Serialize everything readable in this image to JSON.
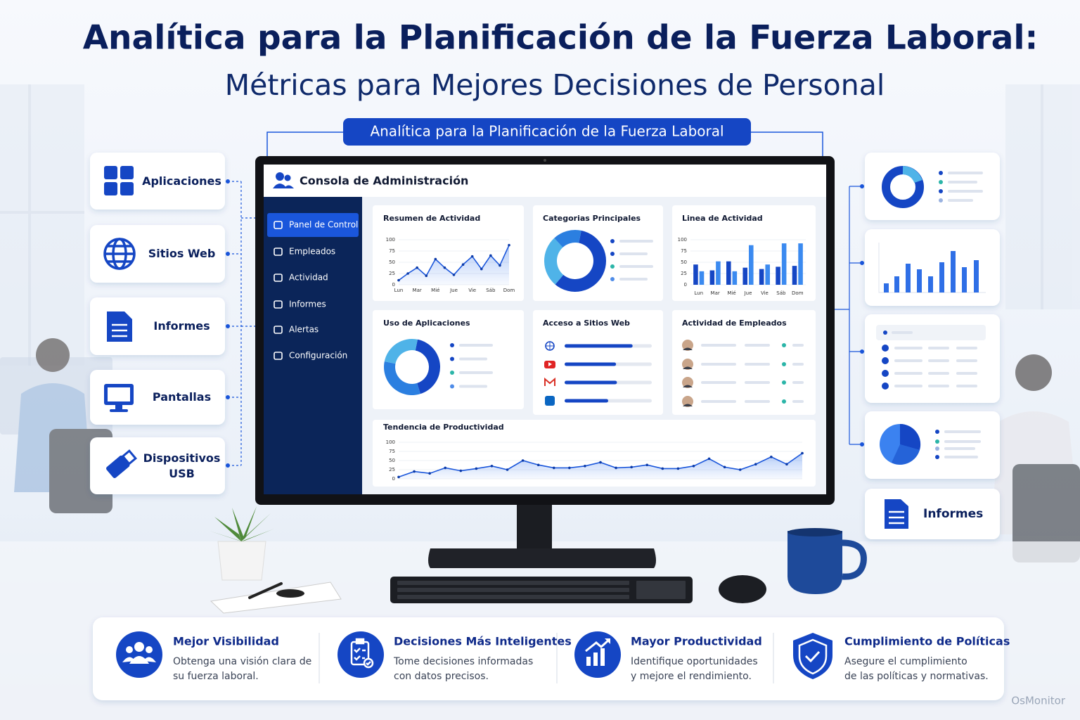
{
  "title": "Analítica para la Planificación de la Fuerza Laboral:",
  "subtitle": "Métricas para Mejores Decisiones de Personal",
  "banner": "Analítica para la Planificación de la Fuerza Laboral",
  "left_items": [
    "Aplicaciones",
    "Sitios Web",
    "Informes",
    "Pantallas",
    "Dispositivos USB"
  ],
  "console": {
    "title": "Consola de Administración",
    "menu": [
      "Panel de Control",
      "Empleados",
      "Actividad",
      "Informes",
      "Alertas",
      "Configuración"
    ]
  },
  "panels": {
    "activity_summary": {
      "type": "line",
      "title": "Resumen de Actividad",
      "color": "#1a56db",
      "xlim": [
        0,
        6
      ],
      "xticks": [
        {
          "value": 0,
          "label": "Lun"
        },
        {
          "value": 1,
          "label": "Mar"
        },
        {
          "value": 2,
          "label": "Mié"
        },
        {
          "value": 3,
          "label": "Jue"
        },
        {
          "value": 4,
          "label": "Vie"
        },
        {
          "value": 5,
          "label": "Sáb"
        },
        {
          "value": 6,
          "label": "Dom"
        }
      ],
      "x": [
        0,
        0.5,
        1,
        1.5,
        2,
        2.5,
        3,
        3.5,
        4,
        4.5,
        5,
        5.5,
        6
      ],
      "values": [
        10,
        25,
        38,
        20,
        57,
        38,
        22,
        45,
        63,
        35,
        65,
        43,
        88
      ],
      "ylim": [
        0,
        100
      ],
      "yticks": [
        0,
        25,
        50,
        75,
        100
      ]
    },
    "top_categories": {
      "type": "pie",
      "title": "Categorias Principales",
      "values": [
        58,
        27,
        15
      ],
      "colors": [
        "#1546c4",
        "#4fb3e8",
        "#2b7fe0"
      ]
    },
    "activity_line": {
      "type": "bar",
      "title": "Linea de Actividad",
      "categories": [
        "Lun",
        "Mar",
        "Mié",
        "Jue",
        "Vie",
        "Sáb",
        "Dom"
      ],
      "series": [
        {
          "color": "#1546c4",
          "values": [
            45,
            32,
            52,
            38,
            35,
            40,
            42
          ]
        },
        {
          "color": "#3b8af0",
          "values": [
            30,
            52,
            30,
            88,
            45,
            92,
            92
          ]
        }
      ],
      "ylim": [
        0,
        100
      ],
      "yticks": [
        0,
        25,
        50,
        75,
        100
      ]
    },
    "app_usage": {
      "type": "pie",
      "title": "Uso de Aplicaciones",
      "values": [
        42,
        33,
        25
      ],
      "colors": [
        "#1546c4",
        "#2b7fe0",
        "#4fb3e8"
      ]
    },
    "web_access": {
      "type": "hbar",
      "title": "Acceso a Sitios Web",
      "values": [
        78,
        59,
        60,
        50
      ],
      "xlim": [
        0,
        100
      ],
      "color": "#1546c4"
    },
    "employee_activity": {
      "title": "Actividad de Empleados"
    },
    "productivity_trend": {
      "type": "line",
      "title": "Tendencia de Productividad",
      "color": "#1a56db",
      "values": [
        5,
        20,
        15,
        30,
        22,
        28,
        35,
        25,
        50,
        38,
        30,
        30,
        35,
        45,
        30,
        32,
        38,
        28,
        28,
        35,
        55,
        32,
        25,
        40,
        60,
        40,
        70
      ],
      "ylim": [
        0,
        100
      ],
      "yticks": [
        0,
        25,
        50,
        75,
        100
      ]
    }
  },
  "right_label": "Informes",
  "features": [
    {
      "title": "Mejor Visibilidad",
      "description": [
        "Obtenga una visión clara de",
        "su fuerza laboral."
      ]
    },
    {
      "title": "Decisiones Más Inteligentes",
      "description": [
        "Tome decisiones informadas",
        "con datos precisos."
      ]
    },
    {
      "title": "Mayor Productividad",
      "description": [
        "Identifique oportunidades",
        "y mejore el rendimiento."
      ]
    },
    {
      "title": "Cumplimiento de Políticas",
      "description": [
        "Asegure el cumplimiento",
        "de las políticas y normativas."
      ]
    }
  ],
  "watermark": "OsMonitor"
}
